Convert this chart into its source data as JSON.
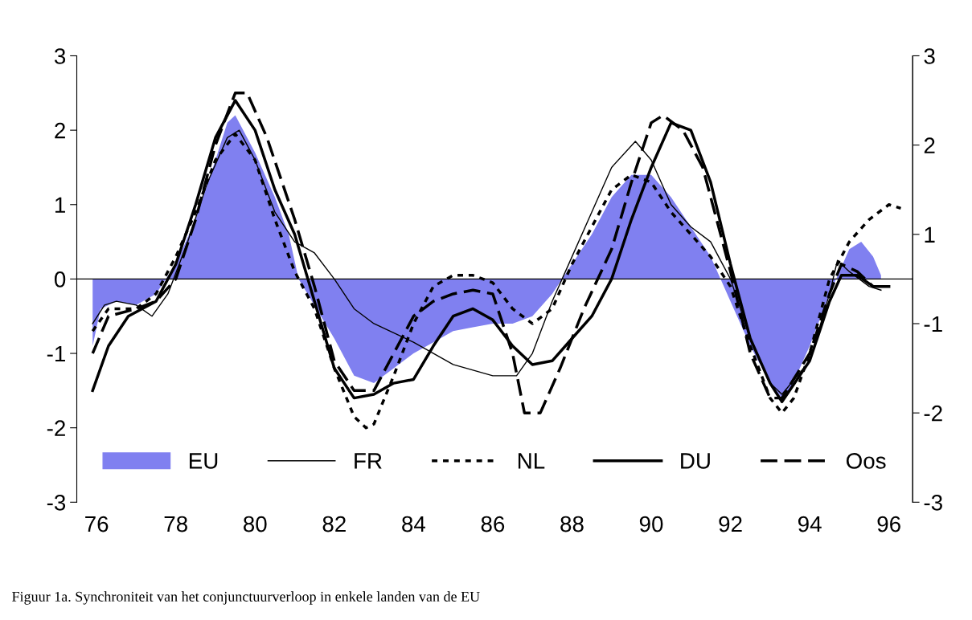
{
  "chart_data": {
    "type": "line",
    "xlim": [
      75.5,
      96.6
    ],
    "xticks": [
      76,
      78,
      80,
      82,
      84,
      86,
      88,
      90,
      92,
      94,
      96
    ],
    "ylim": [
      -3,
      3
    ],
    "yticks": [
      -3,
      -2,
      -1,
      0,
      1,
      2,
      3
    ],
    "y2lim": [
      -3,
      3
    ],
    "y2ticks": [
      {
        "value": 3,
        "label": "3"
      },
      {
        "value": 1.8,
        "label": "2"
      },
      {
        "value": 0.6,
        "label": "1"
      },
      {
        "value": -0.6,
        "label": "-1"
      },
      {
        "value": -1.8,
        "label": "-2"
      },
      {
        "value": -3,
        "label": "-3"
      }
    ],
    "grid": false,
    "legend": "bottom",
    "ref_lines": [
      {
        "axis": "y",
        "value": 0,
        "color": "#000000",
        "line_style": "solid"
      }
    ],
    "annotations": [
      "Figuur 1a. Synchroniteit van het conjunctuurverloop in enkele landen van de EU"
    ],
    "series": [
      {
        "name": "EU",
        "type": "area",
        "color": "#8080f0",
        "x": [
          75.9,
          76.1,
          76.5,
          77.0,
          77.5,
          78.0,
          78.5,
          79.0,
          79.3,
          79.5,
          80.0,
          80.5,
          80.85,
          81.1,
          82.0,
          82.5,
          83.0,
          83.5,
          84.0,
          84.5,
          85.0,
          85.5,
          86.0,
          86.5,
          87.0,
          87.5,
          88.0,
          88.5,
          89.0,
          89.5,
          90.0,
          90.5,
          91.0,
          91.5,
          92.0,
          92.5,
          93.0,
          93.3,
          93.5,
          94.0,
          94.5,
          95.0,
          95.3,
          95.6,
          95.8
        ],
        "values": [
          -0.9,
          -0.4,
          -0.3,
          -0.35,
          -0.2,
          0.2,
          0.8,
          1.6,
          2.1,
          2.2,
          1.7,
          1.1,
          0.6,
          0.0,
          -0.8,
          -1.3,
          -1.4,
          -1.2,
          -1.0,
          -0.85,
          -0.7,
          -0.65,
          -0.6,
          -0.6,
          -0.5,
          -0.2,
          0.2,
          0.6,
          1.1,
          1.4,
          1.4,
          1.1,
          0.7,
          0.3,
          -0.3,
          -0.9,
          -1.4,
          -1.6,
          -1.5,
          -0.9,
          -0.2,
          0.4,
          0.5,
          0.3,
          0.05
        ]
      },
      {
        "name": "FR",
        "color": "#000000",
        "line_style": "solid",
        "x": [
          75.9,
          76.2,
          76.5,
          77.0,
          77.4,
          77.8,
          78.3,
          78.8,
          79.3,
          79.6,
          80.0,
          80.5,
          81.0,
          81.5,
          82.0,
          82.5,
          83.0,
          84.0,
          85.0,
          86.0,
          86.6,
          87.0,
          87.5,
          88.0,
          88.5,
          89.0,
          89.6,
          90.0,
          90.5,
          91.0,
          91.5,
          92.0,
          92.5,
          93.0,
          93.3,
          94.0,
          94.5,
          94.7,
          95.0,
          95.5,
          95.8
        ],
        "values": [
          -0.6,
          -0.35,
          -0.3,
          -0.35,
          -0.5,
          -0.2,
          0.5,
          1.3,
          1.9,
          2.0,
          1.6,
          0.9,
          0.5,
          0.35,
          0.0,
          -0.4,
          -0.6,
          -0.85,
          -1.15,
          -1.3,
          -1.3,
          -1.0,
          -0.3,
          0.3,
          0.9,
          1.5,
          1.85,
          1.6,
          1.0,
          0.7,
          0.5,
          0.0,
          -0.8,
          -1.4,
          -1.55,
          -1.1,
          -0.2,
          0.25,
          0.1,
          -0.1,
          -0.15
        ]
      },
      {
        "name": "NL",
        "color": "#000000",
        "line_style": "dotted",
        "x": [
          75.9,
          76.3,
          77.0,
          77.5,
          78.0,
          78.5,
          79.0,
          79.5,
          80.0,
          80.5,
          81.0,
          81.5,
          82.0,
          82.5,
          82.8,
          83.0,
          83.5,
          84.0,
          84.5,
          85.0,
          85.5,
          86.0,
          86.5,
          87.0,
          87.5,
          88.0,
          88.5,
          89.0,
          89.5,
          90.0,
          90.5,
          91.0,
          91.5,
          92.0,
          92.5,
          93.0,
          93.3,
          93.6,
          94.0,
          94.5,
          95.0,
          95.5,
          96.0,
          96.3
        ],
        "values": [
          -0.7,
          -0.4,
          -0.4,
          -0.2,
          0.3,
          0.9,
          1.6,
          1.95,
          1.6,
          0.8,
          0.1,
          -0.4,
          -1.2,
          -1.85,
          -2.0,
          -1.95,
          -1.3,
          -0.6,
          -0.1,
          0.05,
          0.05,
          -0.05,
          -0.4,
          -0.6,
          -0.4,
          0.2,
          0.7,
          1.2,
          1.4,
          1.3,
          0.9,
          0.6,
          0.3,
          -0.1,
          -0.9,
          -1.6,
          -1.8,
          -1.6,
          -1.0,
          0.0,
          0.5,
          0.8,
          1.0,
          0.95
        ]
      },
      {
        "name": "DU",
        "color": "#000000",
        "line_style": "solid",
        "x": [
          75.9,
          76.3,
          76.8,
          77.5,
          78.0,
          78.5,
          79.0,
          79.5,
          80.0,
          80.5,
          81.0,
          81.5,
          82.0,
          82.5,
          83.0,
          83.5,
          84.0,
          84.5,
          85.0,
          85.5,
          86.0,
          86.5,
          87.0,
          87.5,
          88.0,
          88.5,
          89.0,
          89.5,
          90.0,
          90.5,
          91.0,
          91.5,
          92.0,
          92.5,
          93.0,
          93.3,
          94.0,
          94.5,
          94.8,
          95.2,
          95.6,
          96.0
        ],
        "values": [
          -1.5,
          -0.9,
          -0.5,
          -0.3,
          0.2,
          1.0,
          1.9,
          2.4,
          2.0,
          1.2,
          0.6,
          -0.3,
          -1.2,
          -1.6,
          -1.55,
          -1.4,
          -1.35,
          -0.9,
          -0.5,
          -0.4,
          -0.55,
          -0.9,
          -1.15,
          -1.1,
          -0.8,
          -0.5,
          0.0,
          0.8,
          1.5,
          2.1,
          2.0,
          1.3,
          0.2,
          -0.8,
          -1.4,
          -1.65,
          -1.1,
          -0.3,
          0.05,
          0.05,
          -0.1,
          -0.1
        ]
      },
      {
        "name": "Oos",
        "color": "#000000",
        "line_style": "dashed",
        "x": [
          75.9,
          76.3,
          77.0,
          77.5,
          78.0,
          78.5,
          79.0,
          79.5,
          79.8,
          80.3,
          81.0,
          81.5,
          82.0,
          82.5,
          83.0,
          83.5,
          84.0,
          84.5,
          85.0,
          85.5,
          86.0,
          86.5,
          86.8,
          87.2,
          87.7,
          88.3,
          89.0,
          89.5,
          90.0,
          90.3,
          90.8,
          91.3,
          92.0,
          92.5,
          93.0,
          93.3,
          94.0,
          94.5,
          94.8,
          95.2,
          95.6
        ],
        "values": [
          -1.0,
          -0.5,
          -0.4,
          -0.3,
          0.0,
          0.8,
          1.8,
          2.5,
          2.5,
          1.9,
          0.8,
          -0.1,
          -1.1,
          -1.5,
          -1.5,
          -1.0,
          -0.5,
          -0.3,
          -0.2,
          -0.15,
          -0.2,
          -1.0,
          -1.8,
          -1.8,
          -1.2,
          -0.4,
          0.4,
          1.3,
          2.1,
          2.2,
          2.0,
          1.5,
          0.1,
          -1.0,
          -1.6,
          -1.6,
          -1.0,
          -0.2,
          0.2,
          0.1,
          -0.1
        ]
      }
    ]
  }
}
